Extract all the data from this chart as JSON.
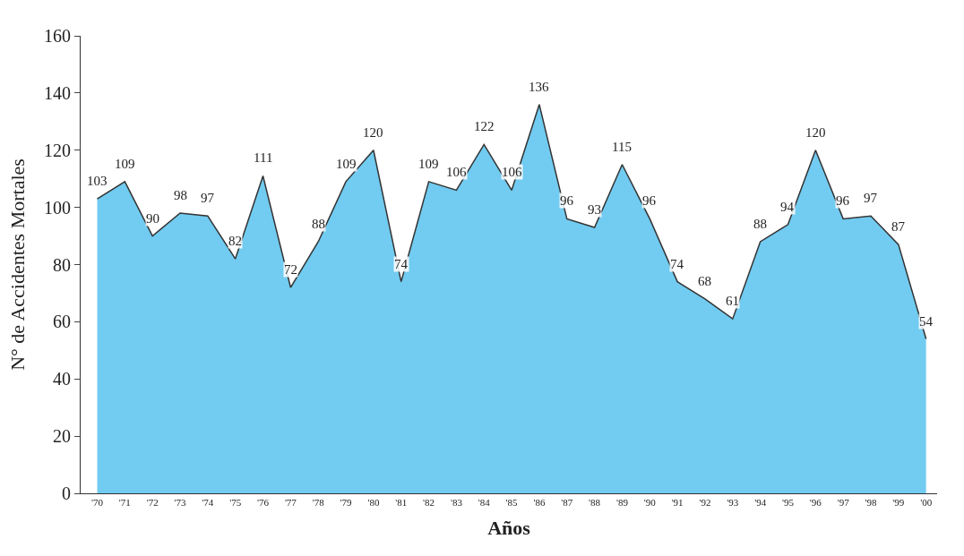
{
  "chart_data": {
    "type": "area",
    "xlabel": "Años",
    "ylabel": "N° de Accidentes Mortales",
    "categories": [
      "'70",
      "'71",
      "'72",
      "'73",
      "'74",
      "'75",
      "'76",
      "'77",
      "'78",
      "'79",
      "'80",
      "'81",
      "'82",
      "'83",
      "'84",
      "'85",
      "'86",
      "'87",
      "'88",
      "'89",
      "'90",
      "'91",
      "'92",
      "'93",
      "'94",
      "'95",
      "'96",
      "'97",
      "'98",
      "'99",
      "'00"
    ],
    "series": [
      {
        "color": "#72cbf0",
        "values": [
          103,
          109,
          90,
          98,
          97,
          82,
          111,
          72,
          88,
          109,
          120,
          74,
          109,
          106,
          122,
          106,
          136,
          96,
          93,
          115,
          96,
          74,
          68,
          61,
          88,
          94,
          120,
          96,
          97,
          87,
          54
        ]
      }
    ],
    "ylim": [
      0,
      160
    ],
    "yticks": [
      0,
      20,
      40,
      60,
      80,
      100,
      120,
      140,
      160
    ],
    "data_labels": true
  }
}
